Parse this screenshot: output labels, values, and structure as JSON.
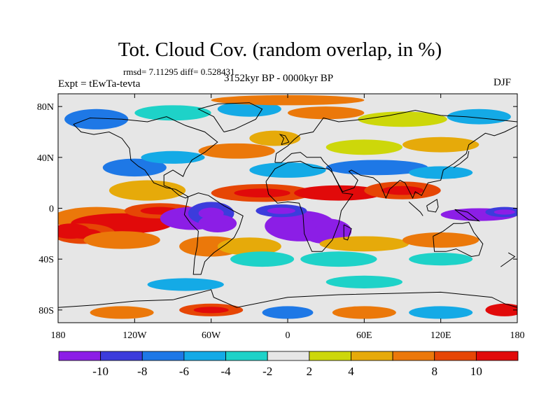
{
  "title": "Tot. Cloud Cov. (random overlap, in %)",
  "stats": "rmsd= 7.11295 diff= 0.528431",
  "experiment": "Expt = tEwTa-tevta",
  "period": "3152kyr BP - 0000kyr BP",
  "season": "DJF",
  "map": {
    "projection": "cylindrical equidistant",
    "lon_range": [
      -180,
      180
    ],
    "lat_range": [
      -90,
      90
    ],
    "x_ticks": [
      {
        "lon": -180,
        "label": "180"
      },
      {
        "lon": -120,
        "label": "120W"
      },
      {
        "lon": -60,
        "label": "60W"
      },
      {
        "lon": 0,
        "label": "0"
      },
      {
        "lon": 60,
        "label": "60E"
      },
      {
        "lon": 120,
        "label": "120E"
      },
      {
        "lon": 180,
        "label": "180"
      }
    ],
    "y_ticks": [
      {
        "lat": 80,
        "label": "80N"
      },
      {
        "lat": 40,
        "label": "40N"
      },
      {
        "lat": 0,
        "label": "0"
      },
      {
        "lat": -40,
        "label": "40S"
      },
      {
        "lat": -80,
        "label": "80S"
      }
    ],
    "background_color": "#e6e6e6",
    "coastline_color": "#000000"
  },
  "colorbar": {
    "colors": [
      "#8c1ee6",
      "#3c3cdc",
      "#1e78e6",
      "#14aae6",
      "#1ed2c8",
      "#e6e6e6",
      "#cdd70a",
      "#e6aa0a",
      "#eb780a",
      "#e64605",
      "#e10a0a"
    ],
    "labels": [
      "-10",
      "-8",
      "-6",
      "-4",
      "-2",
      "2",
      "4",
      "8",
      "10"
    ]
  }
}
